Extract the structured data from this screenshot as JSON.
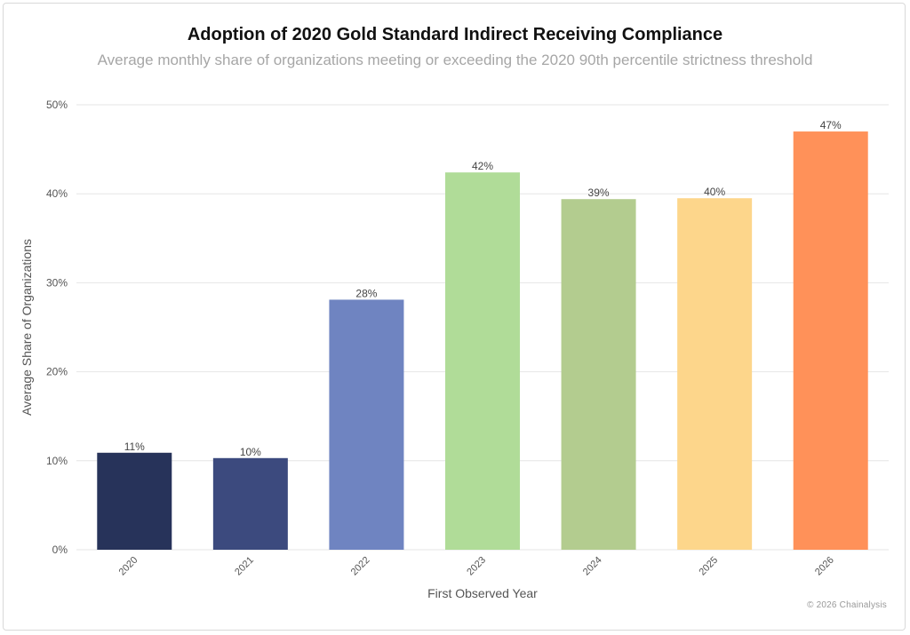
{
  "header": {
    "title": "Adoption of 2020 Gold Standard Indirect Receiving Compliance",
    "subtitle": "Average monthly share of organizations meeting or exceeding the 2020 90th percentile strictness threshold"
  },
  "footer": {
    "credit": "© 2026 Chainalysis"
  },
  "chart_data": {
    "type": "bar",
    "title": "Adoption of 2020 Gold Standard Indirect Receiving Compliance",
    "subtitle": "Average monthly share of organizations meeting or exceeding the 2020 90th percentile strictness threshold",
    "xlabel": "First Observed Year",
    "ylabel": "Average Share of Organizations",
    "categories": [
      "2020",
      "2021",
      "2022",
      "2023",
      "2024",
      "2025",
      "2026"
    ],
    "values": [
      10.9,
      10.3,
      28.1,
      42.4,
      39.4,
      39.5,
      47.0
    ],
    "data_labels": [
      "11%",
      "10%",
      "28%",
      "42%",
      "39%",
      "40%",
      "47%"
    ],
    "colors": [
      "#27335a",
      "#3c4a7e",
      "#6f84c1",
      "#b0dc98",
      "#b3cc8f",
      "#fdd68b",
      "#ff9159"
    ],
    "ylim": [
      0,
      50
    ],
    "yticks": [
      0,
      10,
      20,
      30,
      40,
      50
    ],
    "ytick_labels": [
      "0%",
      "10%",
      "20%",
      "30%",
      "40%",
      "50%"
    ],
    "grid": true,
    "legend": "none"
  }
}
